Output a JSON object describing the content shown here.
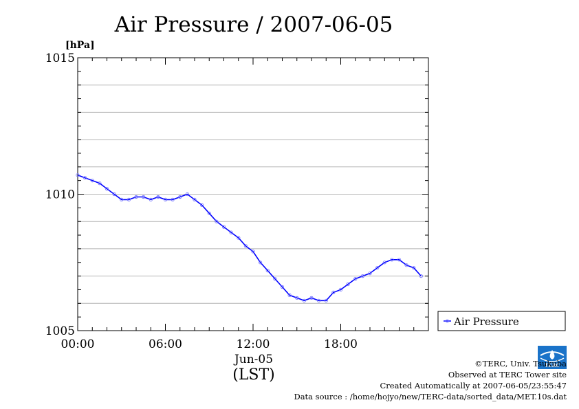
{
  "chart_data": {
    "type": "line",
    "title": "Air Pressure / 2007-06-05",
    "ylabel": "[hPa]",
    "xlabel": "(LST)",
    "x_date_label": "Jun-05",
    "ylim": [
      1005,
      1015
    ],
    "xlim": [
      "00:00",
      "24:00"
    ],
    "y_ticks": [
      "1015",
      "1010",
      "1005"
    ],
    "x_ticks": [
      "00:00",
      "06:00",
      "12:00",
      "18:00"
    ],
    "grid": true,
    "legend_position": "right",
    "series": [
      {
        "name": "Air Pressure",
        "color": "#0000ff",
        "x_hours": [
          0.0,
          0.5,
          1.0,
          1.5,
          2.0,
          2.5,
          3.0,
          3.5,
          4.0,
          4.5,
          5.0,
          5.5,
          6.0,
          6.5,
          7.0,
          7.5,
          8.0,
          8.5,
          9.0,
          9.5,
          10.0,
          10.5,
          11.0,
          11.5,
          12.0,
          12.5,
          13.0,
          13.5,
          14.0,
          14.5,
          15.0,
          15.5,
          16.0,
          16.5,
          17.0,
          17.5,
          18.0,
          18.5,
          19.0,
          19.5,
          20.0,
          20.5,
          21.0,
          21.5,
          22.0,
          22.5,
          23.0,
          23.5
        ],
        "values": [
          1010.7,
          1010.6,
          1010.5,
          1010.4,
          1010.2,
          1010.0,
          1009.8,
          1009.8,
          1009.9,
          1009.9,
          1009.8,
          1009.9,
          1009.8,
          1009.8,
          1009.9,
          1010.0,
          1009.8,
          1009.6,
          1009.3,
          1009.0,
          1008.8,
          1008.6,
          1008.4,
          1008.1,
          1007.9,
          1007.5,
          1007.2,
          1006.9,
          1006.6,
          1006.3,
          1006.2,
          1006.1,
          1006.2,
          1006.1,
          1006.1,
          1006.4,
          1006.5,
          1006.7,
          1006.9,
          1007.0,
          1007.1,
          1007.3,
          1007.5,
          1007.6,
          1007.6,
          1007.4,
          1007.3,
          1007.0
        ]
      }
    ]
  },
  "credits": {
    "copyright": "©TERC, Univ. Tsukuba",
    "observed": "Observed at TERC Tower site",
    "created": "Created Automatically at 2007-06-05/23:55:47",
    "source": "Data source : /home/hojyo/new/TERC-data/sorted_data/MET.10s.dat",
    "logo_text": "TERC"
  }
}
